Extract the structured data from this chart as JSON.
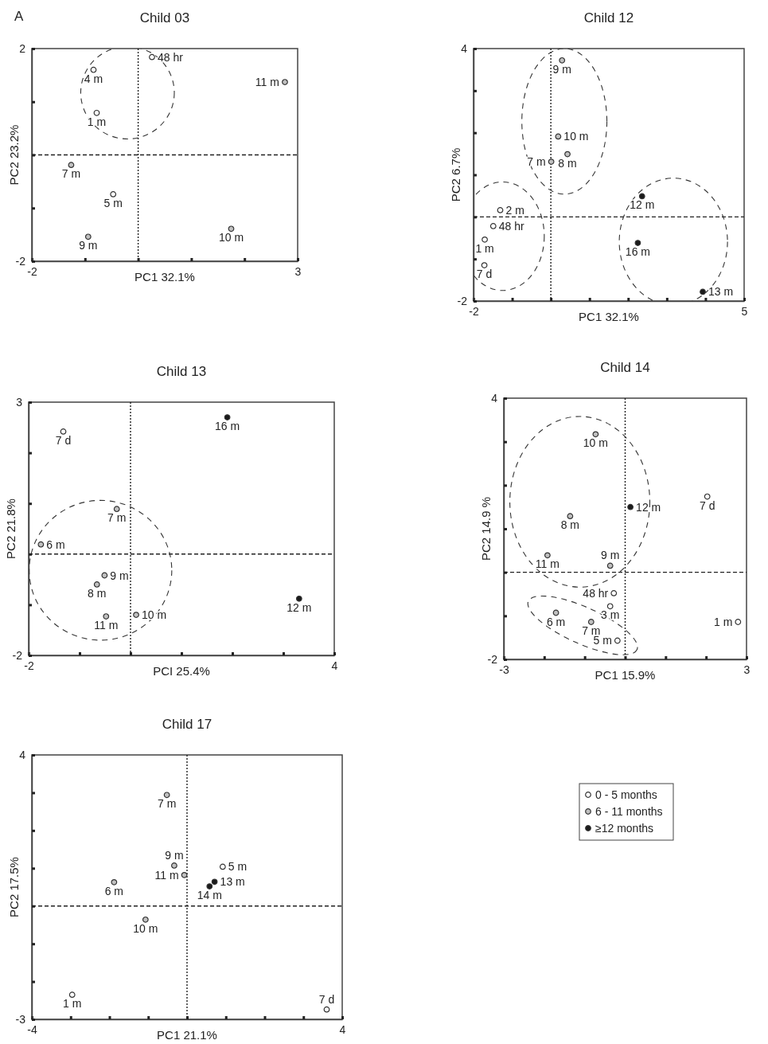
{
  "chart_data": [
    {
      "type": "scatter",
      "title": "Child 03",
      "xlabel": "PC1 32.1%",
      "ylabel": "PC2 23.2%",
      "xlim": [
        -2,
        3
      ],
      "ylim": [
        -2,
        2
      ],
      "xticks": [
        -2,
        {
          "value": -1,
          "label": null
        },
        {
          "value": 0,
          "label": null
        },
        {
          "value": 1,
          "label": null
        },
        {
          "value": 2,
          "label": null
        },
        3
      ],
      "yticks": [
        -2,
        {
          "value": -1,
          "label": null
        },
        {
          "value": 0,
          "label": null
        },
        {
          "value": 1,
          "label": null
        },
        2
      ],
      "marker": "circle",
      "ref_lines": [
        {
          "axis": "x",
          "value": 0,
          "line_style": "dotted"
        },
        {
          "axis": "y",
          "value": 0,
          "line_style": "dashed"
        }
      ],
      "series": [
        {
          "color": "#ffffff",
          "x": [
            0.26,
            -0.84,
            -0.78,
            -0.47
          ],
          "values": [
            1.84,
            1.6,
            0.79,
            -0.74
          ]
        },
        {
          "color": "#c0c0c0",
          "x": [
            2.76,
            -1.26,
            1.75,
            -0.94
          ],
          "values": [
            1.37,
            -0.19,
            -1.39,
            -1.54
          ]
        }
      ],
      "annotations": [
        "A",
        {
          "text": "48 hr",
          "x": 0.26,
          "y": 1.84
        },
        {
          "text": "4 m",
          "x": -0.84,
          "y": 1.6
        },
        {
          "text": "1 m",
          "x": -0.78,
          "y": 0.79
        },
        {
          "text": "5 m",
          "x": -0.47,
          "y": -0.74
        },
        {
          "text": "11 m",
          "x": 2.76,
          "y": 1.37
        },
        {
          "text": "7 m",
          "x": -1.26,
          "y": -0.19
        },
        {
          "text": "10 m",
          "x": 1.75,
          "y": -1.39
        },
        {
          "text": "9 m",
          "x": -0.94,
          "y": -1.54
        }
      ]
    },
    {
      "type": "scatter",
      "title": "Child 12",
      "xlabel": "PC1 32.1%",
      "ylabel": "PC2 6.7%",
      "xlim": [
        -2,
        5
      ],
      "ylim": [
        -2,
        4
      ],
      "xticks": [
        -2,
        {
          "value": -1,
          "label": null
        },
        {
          "value": 0,
          "label": null
        },
        {
          "value": 1,
          "label": null
        },
        {
          "value": 2,
          "label": null
        },
        {
          "value": 3,
          "label": null
        },
        {
          "value": 4,
          "label": null
        },
        5
      ],
      "yticks": [
        -2,
        {
          "value": -1,
          "label": null
        },
        {
          "value": 0,
          "label": null
        },
        {
          "value": 1,
          "label": null
        },
        {
          "value": 2,
          "label": null
        },
        {
          "value": 3,
          "label": null
        },
        4
      ],
      "marker": "circle",
      "ref_lines": [
        {
          "axis": "x",
          "value": 0,
          "line_style": "dotted"
        },
        {
          "axis": "y",
          "value": 0,
          "line_style": "dashed"
        }
      ],
      "series": [
        {
          "color": "#ffffff",
          "x": [
            -1.31,
            -1.49,
            -1.71,
            -1.72
          ],
          "values": [
            0.16,
            -0.22,
            -0.54,
            -1.15
          ]
        },
        {
          "color": "#c0c0c0",
          "x": [
            0.29,
            0.19,
            0.43,
            0.01
          ],
          "values": [
            3.72,
            1.91,
            1.49,
            1.31
          ]
        },
        {
          "color": "#1a1a1a",
          "x": [
            2.36,
            2.25,
            3.93
          ],
          "values": [
            0.49,
            -0.62,
            -1.78
          ]
        }
      ],
      "annotations": [
        {
          "text": "2 m",
          "x": -1.31,
          "y": 0.16
        },
        {
          "text": "48 hr",
          "x": -1.49,
          "y": -0.22
        },
        {
          "text": "1 m",
          "x": -1.71,
          "y": -0.54
        },
        {
          "text": "7 d",
          "x": -1.72,
          "y": -1.15
        },
        {
          "text": "9 m",
          "x": 0.29,
          "y": 3.72
        },
        {
          "text": "10 m",
          "x": 0.19,
          "y": 1.91
        },
        {
          "text": "8 m",
          "x": 0.43,
          "y": 1.49
        },
        {
          "text": "7 m",
          "x": 0.01,
          "y": 1.31
        },
        {
          "text": "12 m",
          "x": 2.36,
          "y": 0.49
        },
        {
          "text": "16 m",
          "x": 2.25,
          "y": -0.62
        },
        {
          "text": "13 m",
          "x": 3.93,
          "y": -1.78
        }
      ]
    },
    {
      "type": "scatter",
      "title": "Child 13",
      "xlabel": "PCI 25.4%",
      "ylabel": "PC2 21.8%",
      "xlim": [
        -2,
        4
      ],
      "ylim": [
        -2,
        3
      ],
      "xticks": [
        -2,
        {
          "value": -1,
          "label": null
        },
        {
          "value": 0,
          "label": null
        },
        {
          "value": 1,
          "label": null
        },
        {
          "value": 2,
          "label": null
        },
        {
          "value": 3,
          "label": null
        },
        4
      ],
      "yticks": [
        -2,
        {
          "value": -1,
          "label": null
        },
        {
          "value": 0,
          "label": null
        },
        {
          "value": 1,
          "label": null
        },
        {
          "value": 2,
          "label": null
        },
        3
      ],
      "marker": "circle",
      "ref_lines": [
        {
          "axis": "x",
          "value": 0,
          "line_style": "dotted"
        },
        {
          "axis": "y",
          "value": 0,
          "line_style": "dashed"
        }
      ],
      "series": [
        {
          "color": "#ffffff",
          "x": [
            -1.32
          ],
          "values": [
            2.42
          ]
        },
        {
          "color": "#c0c0c0",
          "x": [
            -0.27,
            -1.76,
            -0.51,
            -0.66,
            -0.48,
            0.11
          ],
          "values": [
            0.89,
            0.19,
            -0.42,
            -0.6,
            -1.23,
            -1.2
          ]
        },
        {
          "color": "#1a1a1a",
          "x": [
            1.9,
            3.31
          ],
          "values": [
            2.7,
            -0.88
          ]
        }
      ],
      "annotations": [
        {
          "text": "7 d",
          "x": -1.32,
          "y": 2.42
        },
        {
          "text": "7 m",
          "x": -0.27,
          "y": 0.89
        },
        {
          "text": "6 m",
          "x": -1.76,
          "y": 0.19
        },
        {
          "text": "9 m",
          "x": -0.51,
          "y": -0.42
        },
        {
          "text": "8 m",
          "x": -0.66,
          "y": -0.6
        },
        {
          "text": "11 m",
          "x": -0.48,
          "y": -1.23
        },
        {
          "text": "10 m",
          "x": 0.11,
          "y": -1.2
        },
        {
          "text": "16 m",
          "x": 1.9,
          "y": 2.7
        },
        {
          "text": "12 m",
          "x": 3.31,
          "y": -0.88
        }
      ]
    },
    {
      "type": "scatter",
      "title": "Child 14",
      "xlabel": "PC1 15.9%",
      "ylabel": "PC2 14.9 %",
      "xlim": [
        -3,
        3
      ],
      "ylim": [
        -2,
        4
      ],
      "xticks": [
        -3,
        {
          "value": -2,
          "label": null
        },
        {
          "value": -1,
          "label": null
        },
        {
          "value": 0,
          "label": null
        },
        {
          "value": 1,
          "label": null
        },
        {
          "value": 2,
          "label": null
        },
        3
      ],
      "yticks": [
        -2,
        {
          "value": -1,
          "label": null
        },
        {
          "value": 0,
          "label": null
        },
        {
          "value": 1,
          "label": null
        },
        {
          "value": 2,
          "label": null
        },
        {
          "value": 3,
          "label": null
        },
        4
      ],
      "marker": "circle",
      "ref_lines": [
        {
          "axis": "x",
          "value": 0,
          "line_style": "dotted"
        },
        {
          "axis": "y",
          "value": 0,
          "line_style": "dashed"
        }
      ],
      "series": [
        {
          "color": "#ffffff",
          "x": [
            2.03,
            -0.28,
            -0.37,
            -0.19,
            2.79
          ],
          "values": [
            1.74,
            -0.48,
            -0.78,
            -1.57,
            -1.14
          ]
        },
        {
          "color": "#c0c0c0",
          "x": [
            -0.73,
            -1.36,
            -1.92,
            -0.37,
            -1.71,
            -0.84
          ],
          "values": [
            3.17,
            1.29,
            0.39,
            0.15,
            -0.93,
            -1.14
          ]
        },
        {
          "color": "#1a1a1a",
          "x": [
            0.13
          ],
          "values": [
            1.5
          ]
        }
      ],
      "annotations": [
        {
          "text": "7 d",
          "x": 2.03,
          "y": 1.74
        },
        {
          "text": "48 hr",
          "x": -0.28,
          "y": -0.48
        },
        {
          "text": "3 m",
          "x": -0.37,
          "y": -0.78
        },
        {
          "text": "5 m",
          "x": -0.19,
          "y": -1.57
        },
        {
          "text": "1 m",
          "x": 2.79,
          "y": -1.14
        },
        {
          "text": "10 m",
          "x": -0.73,
          "y": 3.17
        },
        {
          "text": "8 m",
          "x": -1.36,
          "y": 1.29
        },
        {
          "text": "11 m",
          "x": -1.92,
          "y": 0.39
        },
        {
          "text": "9 m",
          "x": -0.37,
          "y": 0.15
        },
        {
          "text": "6 m",
          "x": -1.71,
          "y": -0.93
        },
        {
          "text": "7 m",
          "x": -0.84,
          "y": -1.14
        },
        {
          "text": "12 m",
          "x": 0.13,
          "y": 1.5
        }
      ]
    },
    {
      "type": "scatter",
      "title": "Child 17",
      "xlabel": "PC1 21.1%",
      "ylabel": "PC2 17.5%",
      "xlim": [
        -4,
        4
      ],
      "ylim": [
        -3,
        4
      ],
      "xticks": [
        -4,
        {
          "value": -3,
          "label": null
        },
        {
          "value": -2,
          "label": null
        },
        {
          "value": -1,
          "label": null
        },
        {
          "value": 0,
          "label": null
        },
        {
          "value": 1,
          "label": null
        },
        {
          "value": 2,
          "label": null
        },
        {
          "value": 3,
          "label": null
        },
        4
      ],
      "yticks": [
        -3,
        {
          "value": -2,
          "label": null
        },
        {
          "value": -1,
          "label": null
        },
        {
          "value": 0,
          "label": null
        },
        {
          "value": 1,
          "label": null
        },
        {
          "value": 2,
          "label": null
        },
        {
          "value": 3,
          "label": null
        },
        4
      ],
      "marker": "circle",
      "legend": "right",
      "ref_lines": [
        {
          "axis": "x",
          "value": 0,
          "line_style": "dotted"
        },
        {
          "axis": "y",
          "value": 0,
          "line_style": "dashed"
        }
      ],
      "series": [
        {
          "name": "0 - 5 months",
          "color": "#ffffff",
          "x": [
            0.92,
            -2.96,
            3.6
          ],
          "values": [
            1.04,
            -2.35,
            -2.74
          ]
        },
        {
          "name": "6 - 11 months",
          "color": "#c0c0c0",
          "x": [
            -0.52,
            -0.33,
            -0.07,
            -1.88,
            -1.07
          ],
          "values": [
            2.94,
            1.07,
            0.82,
            0.63,
            -0.36
          ]
        },
        {
          "name": "≥12 months",
          "color": "#1a1a1a",
          "x": [
            0.71,
            0.58
          ],
          "values": [
            0.64,
            0.52
          ]
        }
      ],
      "annotations": [
        {
          "text": "5 m",
          "x": 0.92,
          "y": 1.04
        },
        {
          "text": "1 m",
          "x": -2.96,
          "y": -2.35
        },
        {
          "text": "7 d",
          "x": 3.6,
          "y": -2.74
        },
        {
          "text": "7 m",
          "x": -0.52,
          "y": 2.94
        },
        {
          "text": "9 m",
          "x": -0.33,
          "y": 1.07
        },
        {
          "text": "11 m",
          "x": -0.07,
          "y": 0.82
        },
        {
          "text": "6 m",
          "x": -1.88,
          "y": 0.63
        },
        {
          "text": "10 m",
          "x": -1.07,
          "y": -0.36
        },
        {
          "text": "13 m",
          "x": 0.71,
          "y": 0.64
        },
        {
          "text": "14 m",
          "x": 0.58,
          "y": 0.52
        }
      ]
    }
  ]
}
